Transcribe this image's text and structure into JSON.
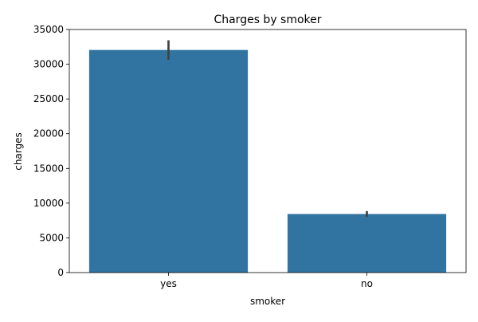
{
  "chart_data": {
    "type": "bar",
    "title": "Charges by smoker",
    "xlabel": "smoker",
    "ylabel": "charges",
    "categories": [
      "yes",
      "no"
    ],
    "values": [
      32050,
      8434
    ],
    "error_bars": [
      {
        "low": 30650,
        "high": 33450
      },
      {
        "low": 8000,
        "high": 8850
      }
    ],
    "ylim": [
      0,
      35000
    ],
    "yticks": [
      0,
      5000,
      10000,
      15000,
      20000,
      25000,
      30000,
      35000
    ],
    "grid": false,
    "legend": "none",
    "colors": {
      "bar": "#3274a1",
      "error_bar": "#424242",
      "axis": "#000000"
    }
  }
}
